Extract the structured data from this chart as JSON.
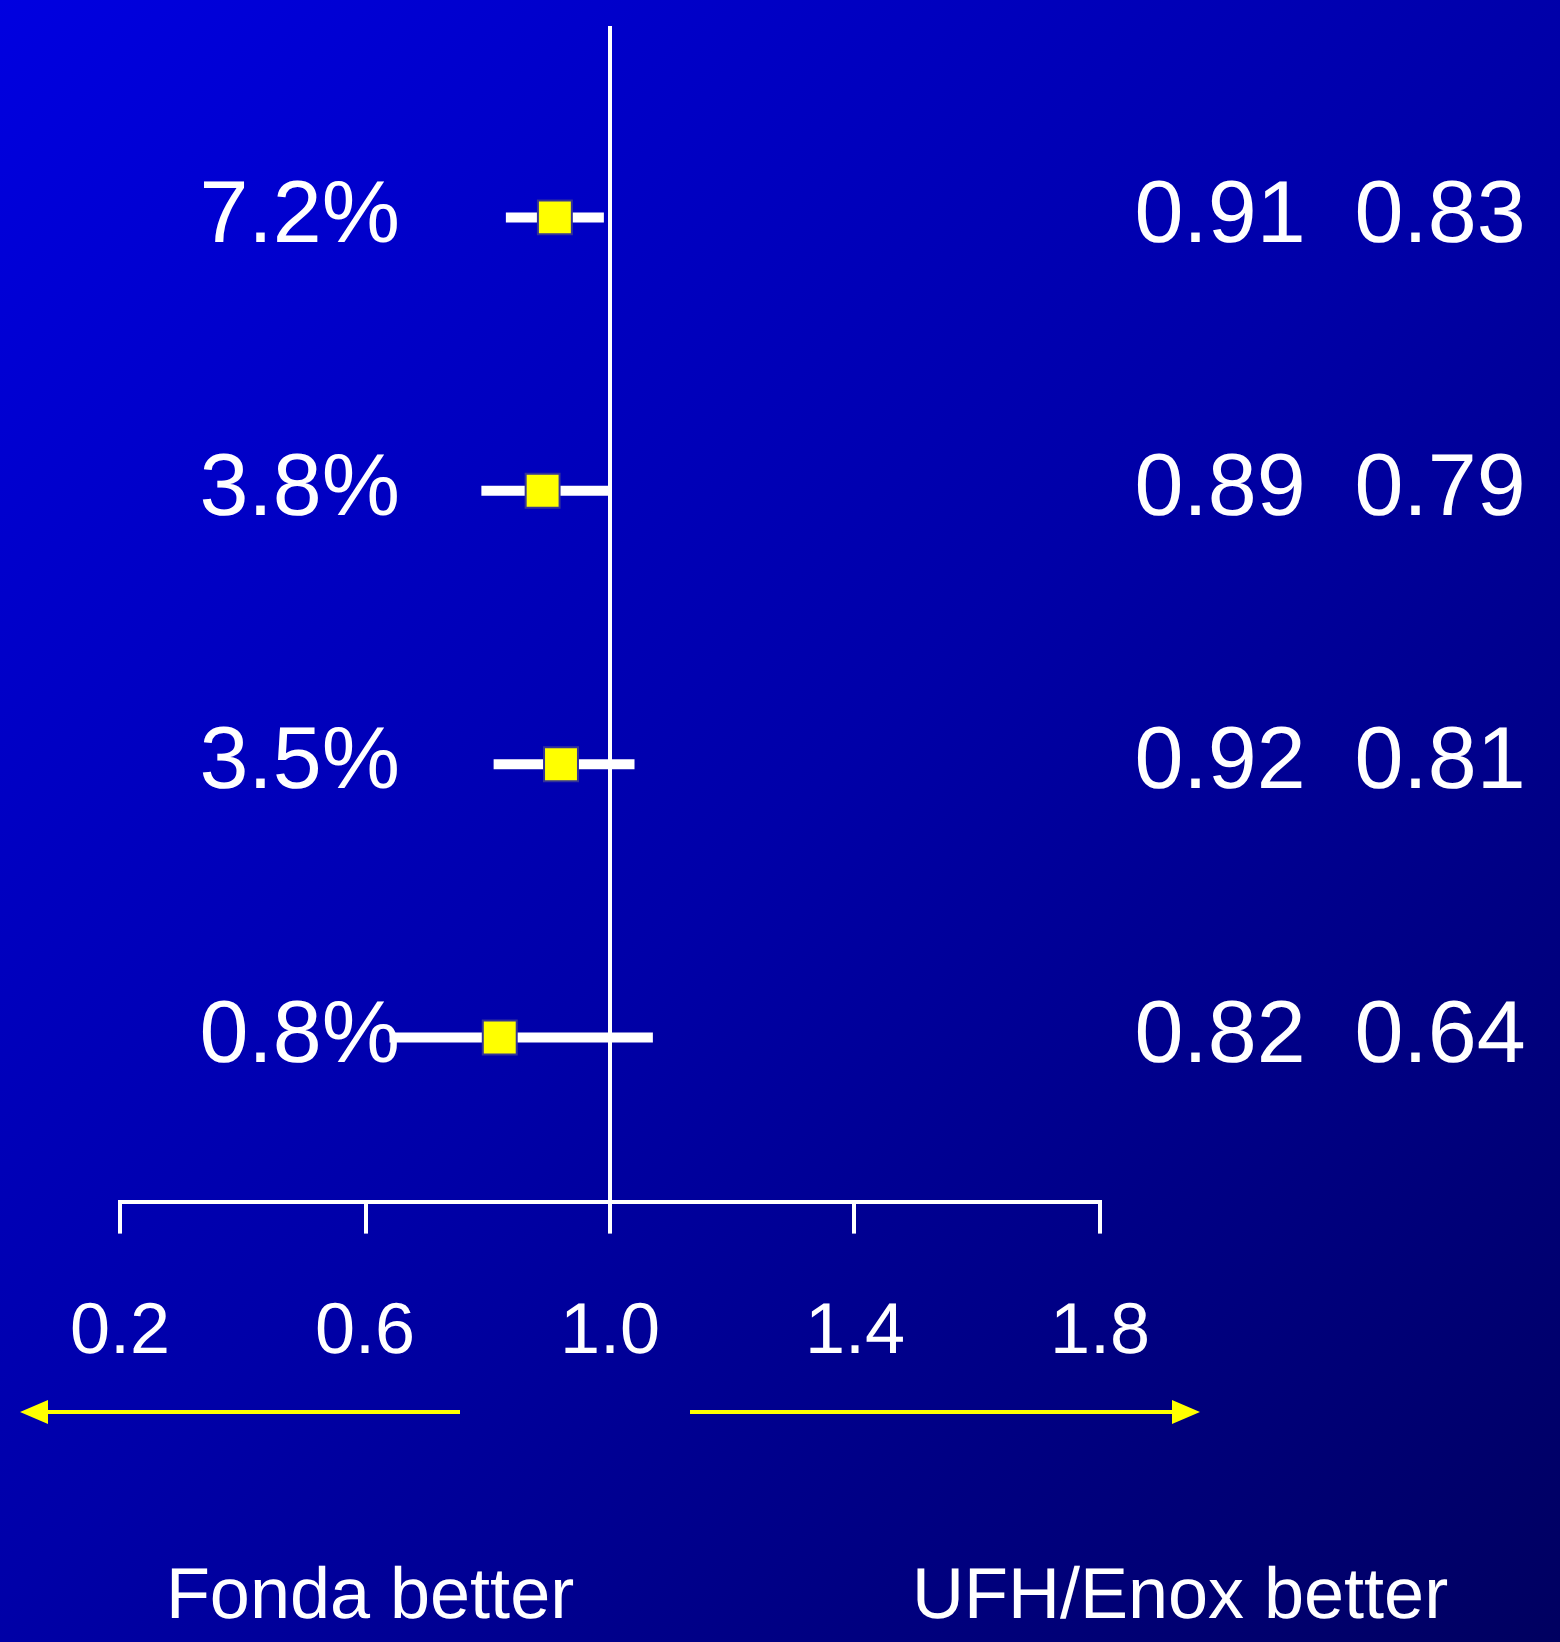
{
  "chart_data": {
    "type": "scatter",
    "orientation": "horizontal",
    "categories": [
      "7.2%",
      "3.8%",
      "3.5%",
      "0.8%"
    ],
    "values": [
      0.91,
      0.89,
      0.92,
      0.82
    ],
    "errors": [
      [
        0.83,
        0.99
      ],
      [
        0.79,
        1.0
      ],
      [
        0.81,
        1.04
      ],
      [
        0.64,
        1.07
      ]
    ],
    "color": "#ffff00",
    "marker": "square",
    "data_labels": true,
    "xlim": [
      0.2,
      1.8
    ],
    "xticks": [
      0.2,
      0.6,
      {
        "value": 1,
        "label": "1.0"
      },
      1.4,
      1.8
    ],
    "ref_lines": [
      {
        "axis": "x",
        "value": 1,
        "color": "#ffffff"
      }
    ],
    "annotations": [
      "Fonda better",
      "UFH/Enox better",
      "0.83",
      "0.79",
      "0.81",
      "0.64"
    ],
    "grid": false,
    "legend": false
  }
}
